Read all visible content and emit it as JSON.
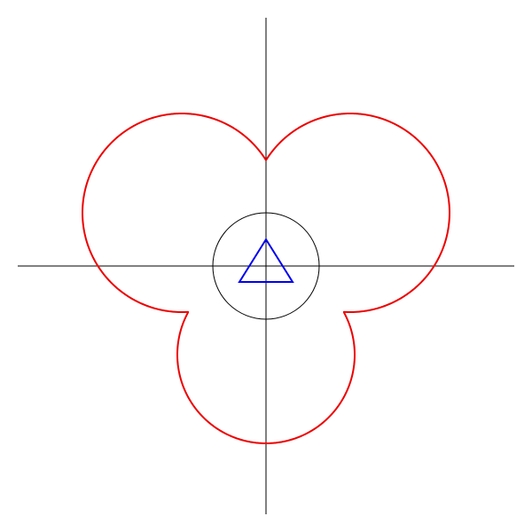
{
  "diagram": {
    "background_color": "#ffffff",
    "axes": {
      "color": "#000000",
      "x_range": [
        -2.8,
        2.8
      ],
      "y_range": [
        -2.8,
        2.8
      ]
    },
    "unit_circle": {
      "center": [
        0,
        0
      ],
      "radius": 0.6,
      "color": "#000000"
    },
    "triangle": {
      "vertices": [
        [
          0,
          0.3
        ],
        [
          -0.3,
          -0.18
        ],
        [
          0.3,
          -0.18
        ]
      ],
      "color": "#0000ee"
    },
    "outer_curve": {
      "color": "#ee0000",
      "lobes": [
        {
          "name": "upper-left-lobe",
          "center": [
            -0.95,
            0.6
          ],
          "radius": 1.12
        },
        {
          "name": "upper-right-lobe",
          "center": [
            0.95,
            0.6
          ],
          "radius": 1.12
        },
        {
          "name": "lower-lobe",
          "center": [
            0,
            -1.0
          ],
          "radius": 1.0
        }
      ]
    }
  }
}
